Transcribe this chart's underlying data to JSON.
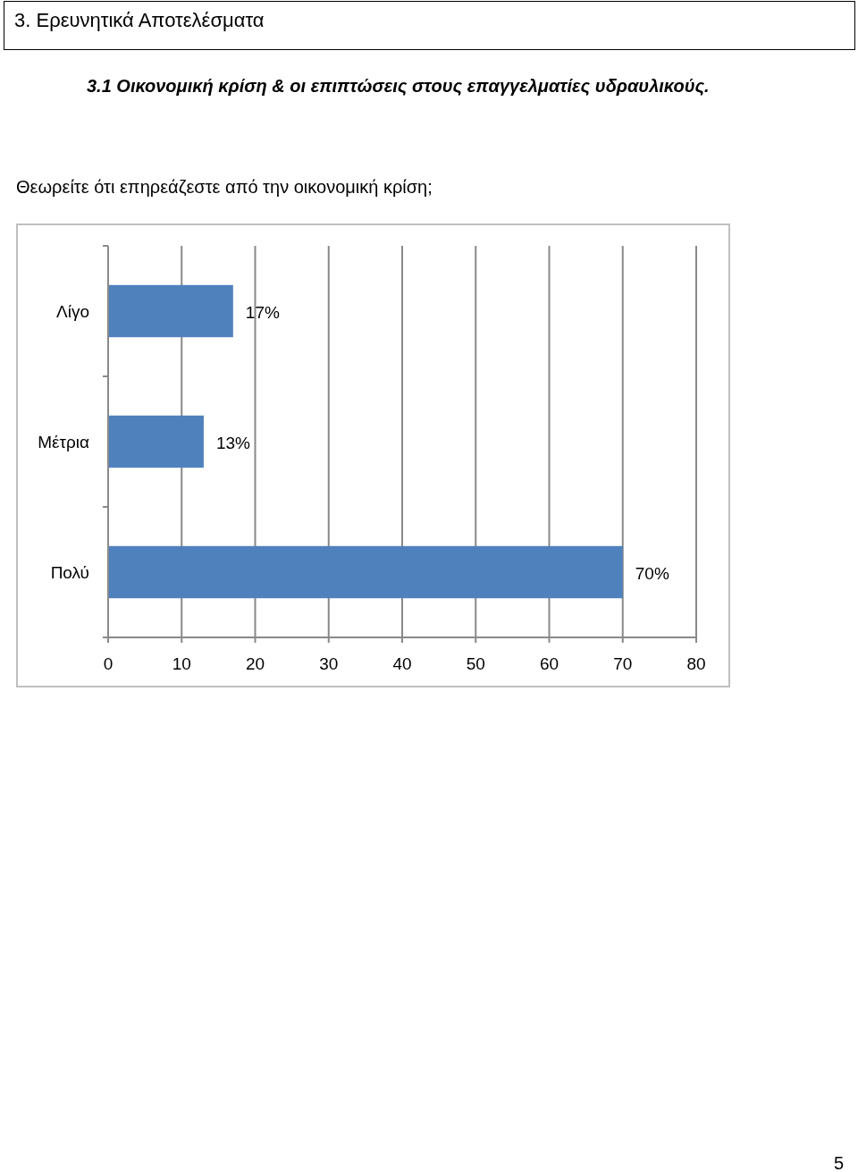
{
  "chart_data": {
    "type": "bar",
    "orientation": "horizontal",
    "title": "Θεωρείτε ότι επηρεάζεστε από την οικονομική κρίση;",
    "annotations": [
      "3. Ερευνητικά Αποτελέσματα",
      "3.1 Οικονομική κρίση & οι επιπτώσεις στους επαγγελματίες υδραυλικούς.",
      "5"
    ],
    "categories": [
      "Λίγο",
      "Μέτρια",
      "Πολύ"
    ],
    "values": [
      17,
      13,
      70
    ],
    "value_labels": [
      "17%",
      "13%",
      "70%"
    ],
    "color": "#4f81bd",
    "xlim": [
      0,
      80
    ],
    "xticks": [
      0,
      10,
      20,
      30,
      40,
      50,
      60,
      70,
      80
    ],
    "grid": "x"
  }
}
